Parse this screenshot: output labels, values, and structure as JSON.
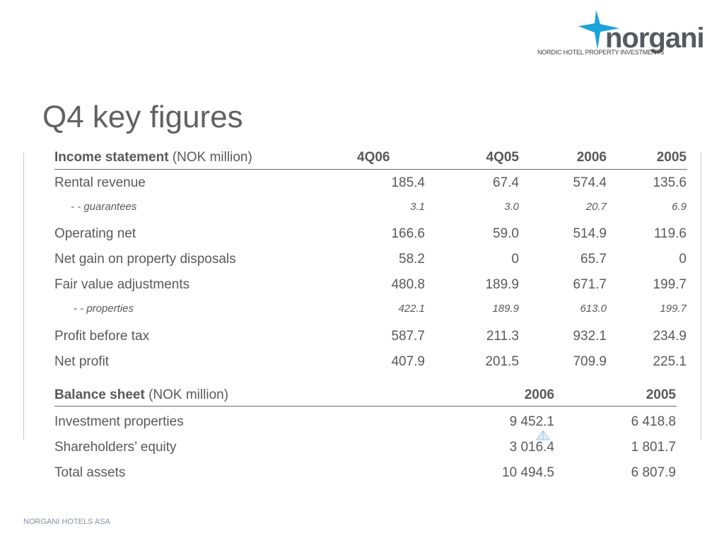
{
  "brand": {
    "logo_text": "norgani",
    "tagline": "NORDIC HOTEL PROPERTY INVESTMENTS",
    "colors": {
      "accent": "#1ca3dc",
      "text": "#555a60"
    }
  },
  "title": "Q4 key figures",
  "income": {
    "header": {
      "label_bold": "Income statement",
      "label_rest": " (NOK million)",
      "cols": [
        "4Q06",
        "4Q05",
        "2006",
        "2005"
      ]
    },
    "rows": [
      {
        "label": "Rental revenue",
        "values": [
          "185.4",
          "67.4",
          "574.4",
          "135.6"
        ]
      },
      {
        "label": "- - guarantees",
        "values": [
          "3.1",
          "3.0",
          "20.7",
          "6.9"
        ]
      },
      {
        "label": "Operating net",
        "values": [
          "166.6",
          "59.0",
          "514.9",
          "119.6"
        ]
      },
      {
        "label": "Net gain on property disposals",
        "values": [
          "58.2",
          "0",
          "65.7",
          "0"
        ]
      },
      {
        "label": "Fair value adjustments",
        "values": [
          "480.8",
          "189.9",
          "671.7",
          "199.7"
        ]
      },
      {
        "label": "- - properties",
        "values": [
          "422.1",
          "189.9",
          "613.0",
          "199.7"
        ]
      },
      {
        "label": "Profit before tax",
        "values": [
          "587.7",
          "211.3",
          "932.1",
          "234.9"
        ]
      },
      {
        "label": "Net profit",
        "values": [
          "407.9",
          "201.5",
          "709.9",
          "225.1"
        ]
      }
    ]
  },
  "balance": {
    "header": {
      "label_bold": "Balance sheet",
      "label_rest": " (NOK million)",
      "cols": [
        "2006",
        "2005"
      ]
    },
    "rows": [
      {
        "label": "Investment properties",
        "values": [
          "9 452.1",
          "6 418.8"
        ]
      },
      {
        "label": "Shareholders’ equity",
        "values": [
          "3 016.4",
          "1 801.7"
        ]
      },
      {
        "label": "Total assets",
        "values": [
          "10 494.5",
          "6 807.9"
        ]
      }
    ]
  },
  "footer": "NORGANI HOTELS ASA"
}
